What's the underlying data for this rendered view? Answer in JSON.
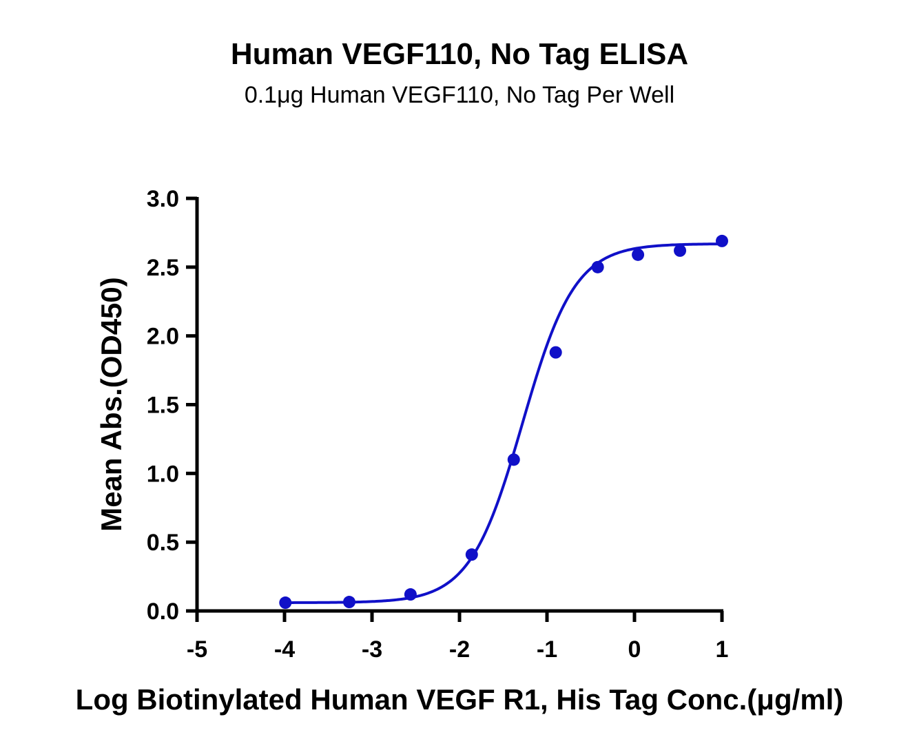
{
  "chart_data": {
    "type": "scatter",
    "title": "Human VEGF110, No Tag ELISA",
    "subtitle": "0.1μg Human VEGF110, No Tag Per Well",
    "xlabel": "Log Biotinylated Human VEGF R1, His Tag Conc.(μg/ml)",
    "ylabel": "Mean Abs.(OD450)",
    "xlim": [
      -5,
      1
    ],
    "ylim": [
      0,
      3
    ],
    "x_ticks": [
      "-5",
      "-4",
      "-3",
      "-2",
      "-1",
      "0",
      "1"
    ],
    "y_ticks": [
      "0.0",
      "0.5",
      "1.0",
      "1.5",
      "2.0",
      "2.5",
      "3.0"
    ],
    "grid": false,
    "series": [
      {
        "color": "#1010c8",
        "points": [
          {
            "x": -3.99,
            "y": 0.06
          },
          {
            "x": -3.26,
            "y": 0.065
          },
          {
            "x": -2.56,
            "y": 0.12
          },
          {
            "x": -1.86,
            "y": 0.41
          },
          {
            "x": -1.38,
            "y": 1.1
          },
          {
            "x": -0.9,
            "y": 1.88
          },
          {
            "x": -0.42,
            "y": 2.5
          },
          {
            "x": 0.04,
            "y": 2.59
          },
          {
            "x": 0.52,
            "y": 2.62
          },
          {
            "x": 1.0,
            "y": 2.69
          }
        ],
        "fit": {
          "model": "4PL",
          "bottom": 0.06,
          "top": 2.67,
          "log_ec50": -1.28,
          "hill_slope": 1.45,
          "x_range": [
            -3.99,
            1.0
          ]
        }
      }
    ]
  }
}
